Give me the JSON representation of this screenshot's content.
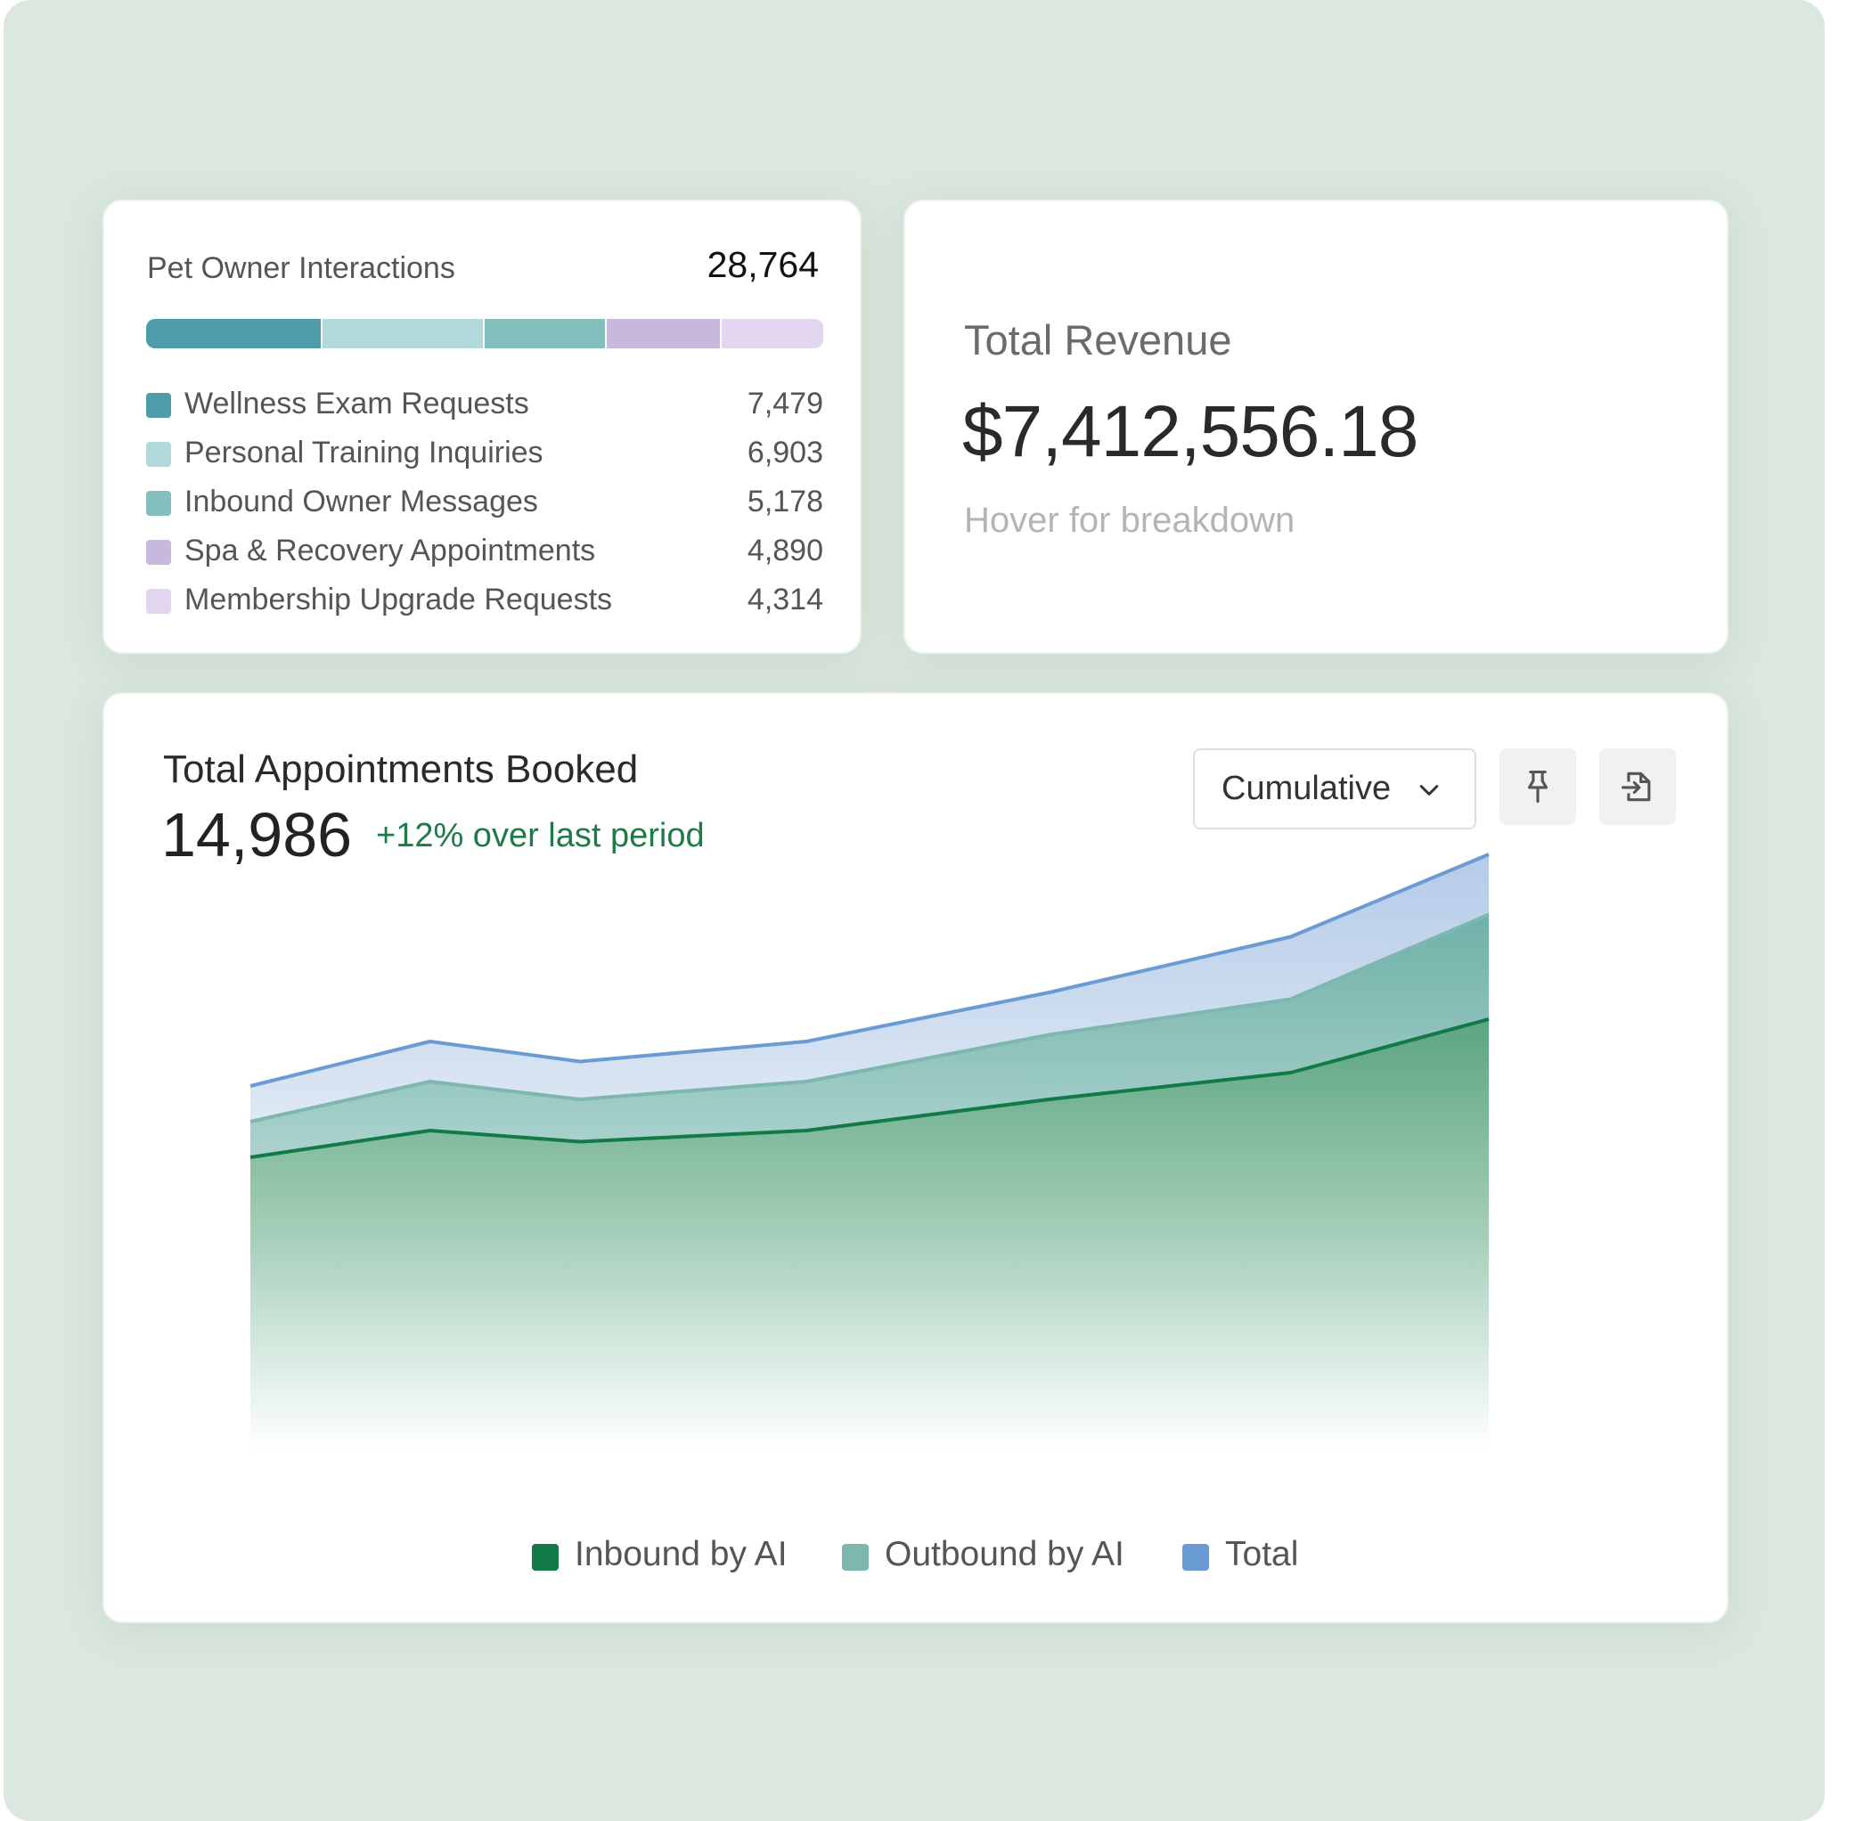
{
  "interactions": {
    "title": "Pet Owner Interactions",
    "total": "28,764",
    "items": [
      {
        "label": "Wellness Exam Requests",
        "value": "7,479",
        "count": 7479,
        "color": "#4e9bab"
      },
      {
        "label": "Personal Training Inquiries",
        "value": "6,903",
        "count": 6903,
        "color": "#b2d9dc"
      },
      {
        "label": "Inbound Owner Messages",
        "value": "5,178",
        "count": 5178,
        "color": "#84bfbe"
      },
      {
        "label": "Spa & Recovery Appointments",
        "value": "4,890",
        "count": 4890,
        "color": "#c7b9de"
      },
      {
        "label": "Membership Upgrade Requests",
        "value": "4,314",
        "count": 4314,
        "color": "#e2d6ee"
      }
    ]
  },
  "revenue": {
    "label": "Total Revenue",
    "value": "$7,412,556.18",
    "hint": "Hover for breakdown"
  },
  "appointments": {
    "title": "Total Appointments Booked",
    "value": "14,986",
    "delta": "+12% over last period",
    "view_select": "Cumulative",
    "icons": {
      "pin": "pin-icon",
      "export": "export-icon",
      "chevron": "chevron-down-icon"
    }
  },
  "chart_data": {
    "type": "area",
    "x": [
      0,
      1,
      2,
      3,
      4,
      5,
      6
    ],
    "ylim": [
      0,
      100
    ],
    "grid": false,
    "legend_position": "bottom-center",
    "series": [
      {
        "name": "Inbound by AI",
        "color": "#127a46",
        "values": [
          24,
          30,
          27.5,
          30,
          37,
          43,
          55
        ]
      },
      {
        "name": "Outbound by AI",
        "color": "#7db7b0",
        "values": [
          32,
          41,
          37,
          41,
          51.5,
          59.5,
          78.5
        ]
      },
      {
        "name": "Total",
        "color": "#6a9bd3",
        "values": [
          40,
          50,
          45.5,
          50,
          61,
          73.5,
          92
        ]
      }
    ]
  }
}
